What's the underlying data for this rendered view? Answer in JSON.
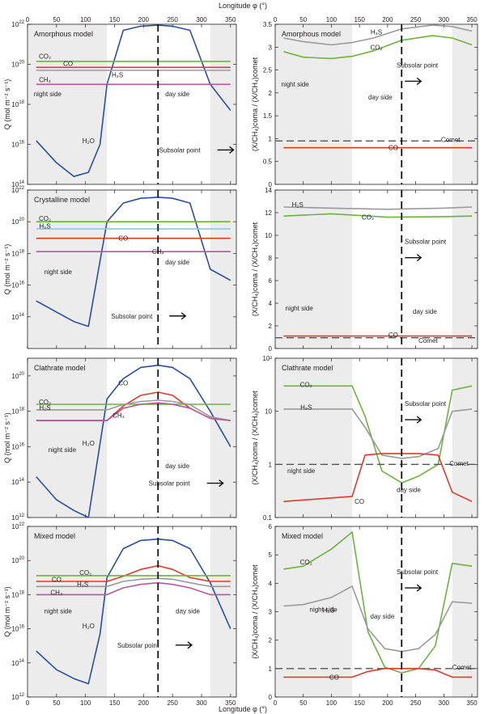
{
  "figure": {
    "top_xlabel": "Longitude  φ  (°)",
    "bottom_xlabel": "Longitude  φ  (°)",
    "x_ticks": [
      0,
      50,
      100,
      150,
      200,
      250,
      300,
      350
    ]
  },
  "chart_data": [
    {
      "id": "amorphous-flux",
      "type": "line",
      "title": "Amorphous model",
      "ylabel": "Q (mol m⁻² s⁻¹)",
      "yscale": "log",
      "xlim": [
        0,
        360
      ],
      "ylim": [
        100000000000000.0,
        1e+22
      ],
      "y_ticks": [
        14,
        16,
        18,
        20,
        22
      ],
      "shade": [
        [
          0,
          137
        ],
        [
          315,
          360
        ]
      ],
      "subsolar_x": 225,
      "labels": {
        "night": "night side",
        "day": "day side",
        "subsolar": "Subsolar point"
      },
      "series": [
        {
          "name": "H₂O",
          "color": "#2b4fa0",
          "x": [
            15,
            50,
            80,
            105,
            125,
            137,
            165,
            195,
            225,
            250,
            280,
            315,
            350
          ],
          "y": [
            1.5e+16,
            1200000000000000.0,
            250000000000000.0,
            400000000000000.0,
            1e+16,
            1e+19,
            5e+21,
            8e+21,
            9e+21,
            8e+21,
            5e+21,
            1e+19,
            5e+17
          ]
        },
        {
          "name": "CO₂",
          "color": "#6db33f",
          "x": [
            15,
            350
          ],
          "y": [
            1.4e+20,
            1.4e+20
          ]
        },
        {
          "name": "CO",
          "color": "#e03a2b",
          "x": [
            15,
            350
          ],
          "y": [
            7e+19,
            7e+19
          ]
        },
        {
          "name": "H₂S",
          "color": "#9a9a9a",
          "x": [
            15,
            350
          ],
          "y": [
            5e+19,
            5e+19
          ]
        },
        {
          "name": "CH₄",
          "color": "#b8579c",
          "x": [
            15,
            350
          ],
          "y": [
            1e+19,
            1e+19
          ]
        }
      ]
    },
    {
      "id": "amorphous-ratio",
      "type": "line",
      "title": "Amorphous model",
      "ylabel": "(X/CH₄)coma / (X/CH₄)comet",
      "yscale": "linear",
      "xlim": [
        0,
        360
      ],
      "ylim": [
        0,
        3.5
      ],
      "y_ticks": [
        0,
        0.5,
        1,
        1.5,
        2,
        2.5,
        3,
        3.5
      ],
      "shade": [
        [
          0,
          137
        ],
        [
          315,
          360
        ]
      ],
      "subsolar_x": 225,
      "labels": {
        "night": "night side",
        "day": "day side",
        "subsolar": "Subsolar point",
        "comet": "Comet"
      },
      "series": [
        {
          "name": "H₂S",
          "color": "#9a9a9a",
          "x": [
            15,
            50,
            100,
            137,
            175,
            225,
            280,
            315,
            350
          ],
          "y": [
            3.2,
            3.12,
            3.05,
            3.1,
            3.2,
            3.4,
            3.48,
            3.45,
            3.35
          ]
        },
        {
          "name": "CO₂",
          "color": "#6db33f",
          "x": [
            15,
            50,
            100,
            137,
            175,
            225,
            280,
            315,
            350
          ],
          "y": [
            2.9,
            2.78,
            2.75,
            2.8,
            2.92,
            3.15,
            3.25,
            3.2,
            3.05
          ]
        },
        {
          "name": "Comet",
          "color": "#555555",
          "dashed": true,
          "x": [
            0,
            360
          ],
          "y": [
            0.95,
            0.95
          ]
        },
        {
          "name": "CO",
          "color": "#e03a2b",
          "x": [
            15,
            350
          ],
          "y": [
            0.8,
            0.8
          ]
        }
      ]
    },
    {
      "id": "crystalline-flux",
      "type": "line",
      "title": "Crystalline model",
      "ylabel": "Q (mol m⁻² s⁻¹)",
      "yscale": "log",
      "xlim": [
        0,
        360
      ],
      "ylim": [
        1000000000000.0,
        1e+22
      ],
      "y_ticks": [
        14,
        16,
        18,
        20,
        22
      ],
      "shade": [
        [
          0,
          137
        ],
        [
          315,
          360
        ]
      ],
      "subsolar_x": 225,
      "labels": {
        "night": "night side",
        "day": "day side",
        "subsolar": "Subsolar point"
      },
      "series": [
        {
          "name": "H₂O",
          "color": "#2b4fa0",
          "x": [
            15,
            50,
            80,
            105,
            137,
            165,
            195,
            225,
            250,
            280,
            315,
            350
          ],
          "y": [
            1000000000000000.0,
            200000000000000.0,
            50000000000000.0,
            25000000000000.0,
            1e+20,
            1.5e+21,
            3e+21,
            3.5e+21,
            3e+21,
            1.5e+21,
            1e+17,
            2e+16
          ]
        },
        {
          "name": "CO₂",
          "color": "#6db33f",
          "x": [
            15,
            350
          ],
          "y": [
            1e+20,
            1e+20
          ]
        },
        {
          "name": "H₂S",
          "color": "#8fc7dd",
          "x": [
            15,
            350
          ],
          "y": [
            3.5e+19,
            3.5e+19
          ]
        },
        {
          "name": "CO",
          "color": "#e03a2b",
          "x": [
            15,
            350
          ],
          "y": [
            9e+18,
            9e+18
          ]
        },
        {
          "name": "CH₄",
          "color": "#b8579c",
          "x": [
            15,
            350
          ],
          "y": [
            1.3e+18,
            1.3e+18
          ]
        }
      ]
    },
    {
      "id": "crystalline-ratio",
      "type": "line",
      "title": "",
      "ylabel": "(X/CH₄)coma / (X/CH₄)comet",
      "yscale": "linear",
      "xlim": [
        0,
        360
      ],
      "ylim": [
        0,
        14
      ],
      "y_ticks": [
        0,
        2,
        4,
        6,
        8,
        10,
        12,
        14
      ],
      "shade": [
        [
          0,
          137
        ],
        [
          315,
          360
        ]
      ],
      "subsolar_x": 225,
      "labels": {
        "night": "night side",
        "day": "day side",
        "subsolar": "Subsolar point",
        "comet": "Comet"
      },
      "series": [
        {
          "name": "H₂S",
          "color": "#9a9a9a",
          "x": [
            15,
            100,
            200,
            300,
            350
          ],
          "y": [
            12.5,
            12.4,
            12.3,
            12.4,
            12.5
          ]
        },
        {
          "name": "CO₂",
          "color": "#6db33f",
          "x": [
            15,
            100,
            200,
            300,
            350
          ],
          "y": [
            11.7,
            11.9,
            11.6,
            11.65,
            11.7
          ]
        },
        {
          "name": "CO",
          "color": "#e03a2b",
          "x": [
            15,
            350
          ],
          "y": [
            1.1,
            1.1
          ]
        },
        {
          "name": "Comet",
          "color": "#555555",
          "dashed": true,
          "x": [
            0,
            360
          ],
          "y": [
            0.95,
            0.95
          ]
        }
      ]
    },
    {
      "id": "clathrate-flux",
      "type": "line",
      "title": "Clathrate model",
      "ylabel": "Q (mol m⁻² s⁻¹)",
      "yscale": "log",
      "xlim": [
        0,
        360
      ],
      "ylim": [
        1000000000000.0,
        1e+21
      ],
      "y_ticks": [
        12,
        14,
        16,
        18,
        20
      ],
      "shade": [
        [
          0,
          137
        ],
        [
          315,
          360
        ]
      ],
      "subsolar_x": 225,
      "labels": {
        "night": "night side",
        "day": "day side",
        "subsolar": "Subsolar point"
      },
      "series": [
        {
          "name": "H₂O",
          "color": "#2b4fa0",
          "x": [
            15,
            50,
            80,
            105,
            137,
            165,
            195,
            225,
            250,
            280,
            315,
            350
          ],
          "y": [
            200000000000000.0,
            10000000000000.0,
            2500000000000.0,
            1000000000000.0,
            5e+18,
            7e+19,
            3e+20,
            4e+20,
            3e+20,
            7e+19,
            1e+18,
            1e+16
          ]
        },
        {
          "name": "CO",
          "color": "#e03a2b",
          "x": [
            15,
            137,
            165,
            195,
            225,
            250,
            280,
            315,
            350
          ],
          "y": [
            3e+17,
            3e+17,
            2e+18,
            8e+18,
            1.2e+19,
            8e+18,
            1.5e+18,
            4e+17,
            3e+17
          ]
        },
        {
          "name": "CO₂",
          "color": "#6db33f",
          "x": [
            15,
            350
          ],
          "y": [
            2.5e+18,
            2.5e+18
          ]
        },
        {
          "name": "H₂S",
          "color": "#9a9a9a",
          "x": [
            15,
            137,
            165,
            195,
            225,
            250,
            280,
            315,
            350
          ],
          "y": [
            1.2e+18,
            1.2e+18,
            2.4e+18,
            3.6e+18,
            4.2e+18,
            3.6e+18,
            2.4e+18,
            5e+17,
            3e+17
          ]
        },
        {
          "name": "CH₄",
          "color": "#b8579c",
          "x": [
            15,
            137,
            165,
            195,
            225,
            250,
            280,
            315,
            350
          ],
          "y": [
            3e+17,
            3e+17,
            1.5e+18,
            2.5e+18,
            3e+18,
            2.5e+18,
            1.5e+18,
            4e+17,
            3e+17
          ]
        }
      ]
    },
    {
      "id": "clathrate-ratio",
      "type": "line",
      "title": "Clathrate model",
      "ylabel": "(X/CH₄)coma / (X/CH₄)comet",
      "yscale": "log",
      "xlim": [
        0,
        360
      ],
      "ylim": [
        0.1,
        100
      ],
      "y_tick_labels": [
        "0.1",
        "1",
        "10",
        "10²"
      ],
      "shade": [
        [
          0,
          137
        ],
        [
          315,
          360
        ]
      ],
      "subsolar_x": 225,
      "labels": {
        "night": "night side",
        "day": "day side",
        "subsolar": "Subsolar point",
        "comet": "Comet"
      },
      "series": [
        {
          "name": "CO₂",
          "color": "#6db33f",
          "x": [
            15,
            137,
            160,
            190,
            225,
            255,
            290,
            315,
            350
          ],
          "y": [
            30,
            30,
            8,
            0.75,
            0.45,
            0.6,
            1,
            25,
            30
          ]
        },
        {
          "name": "H₂S",
          "color": "#9a9a9a",
          "x": [
            15,
            137,
            160,
            190,
            225,
            255,
            290,
            315,
            350
          ],
          "y": [
            11,
            11,
            5,
            1.5,
            1.3,
            1.4,
            2,
            10,
            11
          ]
        },
        {
          "name": "Comet",
          "color": "#555555",
          "dashed": true,
          "x": [
            0,
            360
          ],
          "y": [
            1,
            1
          ]
        },
        {
          "name": "CO",
          "color": "#e03a2b",
          "x": [
            15,
            137,
            160,
            190,
            225,
            255,
            290,
            315,
            350
          ],
          "y": [
            0.2,
            0.25,
            1.5,
            1.6,
            1.6,
            1.6,
            1.5,
            0.3,
            0.2
          ]
        }
      ]
    },
    {
      "id": "mixed-flux",
      "type": "line",
      "title": "Mixed model",
      "ylabel": "Q (mol m⁻² s⁻¹)",
      "yscale": "log",
      "xlim": [
        0,
        360
      ],
      "ylim": [
        1000000000000.0,
        1e+22
      ],
      "y_ticks": [
        12,
        14,
        16,
        18,
        20,
        22
      ],
      "shade": [
        [
          0,
          137
        ],
        [
          315,
          360
        ]
      ],
      "subsolar_x": 225,
      "labels": {
        "night": "night side",
        "day": "day side",
        "subsolar": "Subsolar point"
      },
      "series": [
        {
          "name": "H₂O",
          "color": "#2b4fa0",
          "x": [
            15,
            50,
            80,
            105,
            125,
            137,
            165,
            195,
            225,
            250,
            280,
            315,
            350
          ],
          "y": [
            500000000000000.0,
            40000000000000.0,
            12000000000000.0,
            6000000000000.0,
            5000000000000000.0,
            1e+19,
            5e+20,
            1.5e+21,
            1.8e+21,
            1.5e+21,
            5e+20,
            5e+18,
            1e+16
          ]
        },
        {
          "name": "CO",
          "color": "#e03a2b",
          "x": [
            15,
            137,
            165,
            195,
            225,
            250,
            280,
            315,
            350
          ],
          "y": [
            6e+18,
            6e+18,
            1.2e+19,
            3e+19,
            5e+19,
            3e+19,
            1e+19,
            6e+18,
            6e+18
          ]
        },
        {
          "name": "CO₂",
          "color": "#6db33f",
          "x": [
            15,
            350
          ],
          "y": [
            1.3e+19,
            1.3e+19
          ]
        },
        {
          "name": "H₂S",
          "color": "#9a9a9a",
          "x": [
            15,
            137,
            165,
            195,
            225,
            250,
            280,
            315,
            350
          ],
          "y": [
            3e+18,
            3e+18,
            6e+18,
            8e+18,
            9e+18,
            8e+18,
            5e+18,
            3e+18,
            3e+18
          ]
        },
        {
          "name": "CH₄",
          "color": "#b8579c",
          "x": [
            15,
            137,
            165,
            195,
            225,
            250,
            280,
            315,
            350
          ],
          "y": [
            1e+18,
            1e+18,
            2.5e+18,
            4e+18,
            5e+18,
            4e+18,
            2.5e+18,
            1e+18,
            1e+18
          ]
        }
      ]
    },
    {
      "id": "mixed-ratio",
      "type": "line",
      "title": "Mixed model",
      "ylabel": "(X/CH₄)coma / (X/CH₄)comet",
      "yscale": "linear",
      "xlim": [
        0,
        360
      ],
      "ylim": [
        0,
        6
      ],
      "y_ticks": [
        0,
        1,
        2,
        3,
        4,
        5,
        6
      ],
      "shade": [
        [
          0,
          137
        ],
        [
          315,
          360
        ]
      ],
      "subsolar_x": 225,
      "labels": {
        "night": "night side",
        "day": "day side",
        "subsolar": "Subsolar point",
        "comet": "Comet"
      },
      "series": [
        {
          "name": "CO₂",
          "color": "#6db33f",
          "x": [
            15,
            50,
            100,
            137,
            165,
            195,
            225,
            255,
            285,
            315,
            350
          ],
          "y": [
            4.5,
            4.6,
            5.2,
            5.8,
            2.3,
            1.05,
            0.85,
            1,
            1.8,
            4.7,
            4.6
          ]
        },
        {
          "name": "H₂S",
          "color": "#9a9a9a",
          "x": [
            15,
            50,
            100,
            137,
            165,
            195,
            225,
            255,
            285,
            315,
            350
          ],
          "y": [
            3.2,
            3.25,
            3.5,
            3.9,
            2.4,
            1.7,
            1.6,
            1.7,
            2.2,
            3.35,
            3.3
          ]
        },
        {
          "name": "Comet",
          "color": "#555555",
          "dashed": true,
          "x": [
            0,
            360
          ],
          "y": [
            1,
            1
          ]
        },
        {
          "name": "CO",
          "color": "#e03a2b",
          "x": [
            15,
            137,
            165,
            195,
            225,
            255,
            285,
            315,
            350
          ],
          "y": [
            0.7,
            0.7,
            0.9,
            1,
            1,
            1,
            0.95,
            0.7,
            0.7
          ]
        }
      ]
    }
  ]
}
